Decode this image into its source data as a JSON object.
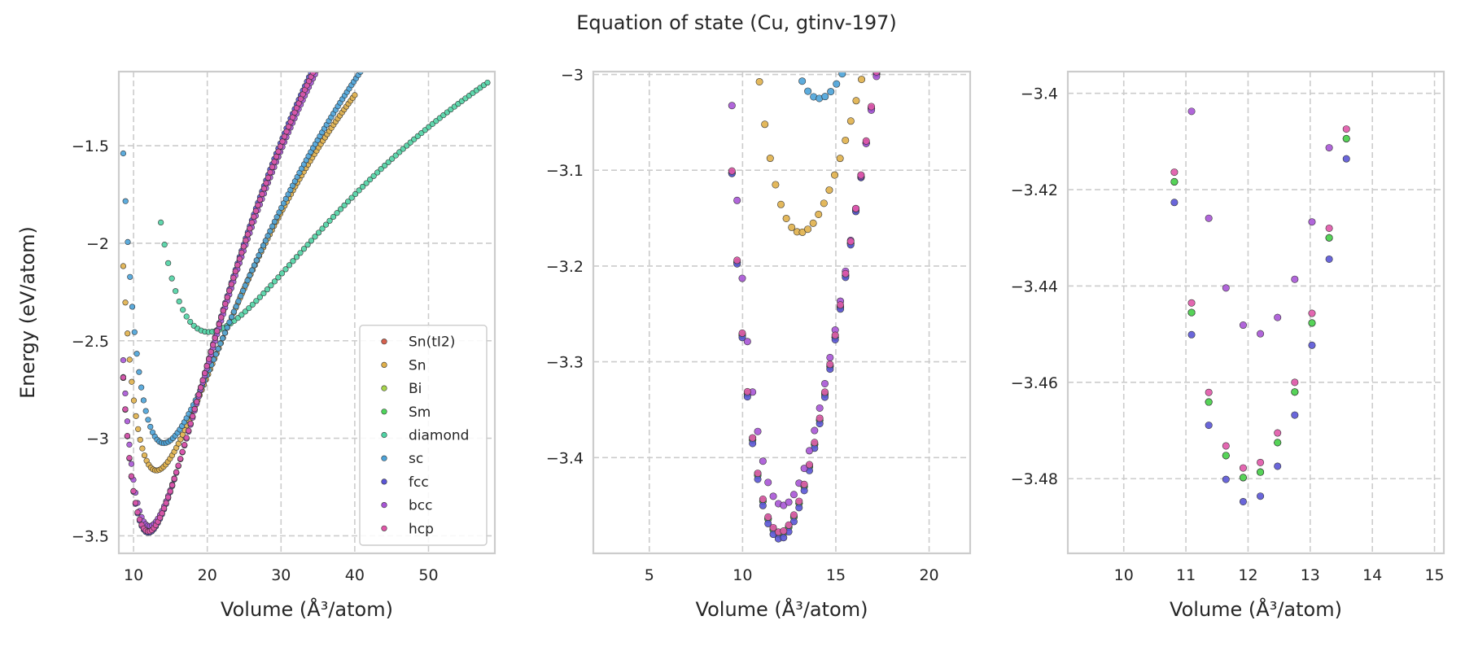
{
  "figure": {
    "title": "Equation of state (Cu, gtinv-197)"
  },
  "chart_data": [
    {
      "type": "scatter",
      "xlabel": "Volume (Å³/atom)",
      "ylabel": "Energy (eV/atom)",
      "xlim": [
        8.0,
        59.0
      ],
      "ylim": [
        -3.59,
        -1.12
      ],
      "xticks": [
        10,
        20,
        30,
        40,
        50
      ],
      "yticks": [
        -3.5,
        -3.0,
        -2.5,
        -2.0,
        -1.5
      ],
      "grid": true,
      "legend": {
        "position": "lower-right"
      },
      "series": [
        {
          "name": "Sn(tI2)",
          "color": "#d6604d",
          "model": {
            "e0": -3.48,
            "v0": 12.0,
            "b": 0.86,
            "bp": 4.8
          },
          "vrange": [
            8.6,
            36.0
          ],
          "n": 100
        },
        {
          "name": "Sn",
          "color": "#e0b04a",
          "model": {
            "e0": -3.165,
            "v0": 13.1,
            "b": 0.6,
            "bp": 4.8
          },
          "vrange": [
            8.6,
            40.0
          ],
          "n": 110
        },
        {
          "name": "Bi",
          "color": "#a6d44a",
          "model": {
            "e0": -3.48,
            "v0": 12.0,
            "b": 0.86,
            "bp": 4.8
          },
          "vrange": [
            8.6,
            36.0
          ],
          "n": 100
        },
        {
          "name": "Sm",
          "color": "#4cd45a",
          "model": {
            "e0": -3.48,
            "v0": 12.0,
            "b": 0.86,
            "bp": 4.8
          },
          "vrange": [
            8.6,
            36.0
          ],
          "n": 100
        },
        {
          "name": "diamond",
          "color": "#4fd3a4",
          "model": {
            "e0": -2.455,
            "v0": 20.2,
            "b": 0.26,
            "bp": 4.6
          },
          "vrange": [
            13.7,
            58.0
          ],
          "n": 90
        },
        {
          "name": "sc",
          "color": "#4ba3d9",
          "model": {
            "e0": -3.025,
            "v0": 14.1,
            "b": 0.55,
            "bp": 4.6
          },
          "vrange": [
            8.6,
            42.0
          ],
          "n": 110
        },
        {
          "name": "fcc",
          "color": "#5a55d6",
          "model": {
            "e0": -3.485,
            "v0": 12.0,
            "b": 0.87,
            "bp": 4.8
          },
          "vrange": [
            8.6,
            36.0
          ],
          "n": 100
        },
        {
          "name": "bcc",
          "color": "#a855d6",
          "model": {
            "e0": -3.45,
            "v0": 12.15,
            "b": 0.84,
            "bp": 4.8
          },
          "vrange": [
            8.6,
            36.0
          ],
          "n": 100
        },
        {
          "name": "hcp",
          "color": "#e056a8",
          "model": {
            "e0": -3.478,
            "v0": 12.0,
            "b": 0.86,
            "bp": 4.8
          },
          "vrange": [
            8.6,
            36.0
          ],
          "n": 100
        }
      ]
    },
    {
      "type": "scatter",
      "xlabel": "Volume (Å³/atom)",
      "ylabel": "",
      "xlim": [
        2.0,
        22.2
      ],
      "ylim": [
        -3.5,
        -2.997
      ],
      "xticks": [
        5,
        10,
        15,
        20
      ],
      "yticks": [
        -3.4,
        -3.3,
        -3.2,
        -3.1,
        -3.0
      ],
      "grid": true,
      "zoom_of": 0
    },
    {
      "type": "scatter",
      "xlabel": "Volume (Å³/atom)",
      "ylabel": "",
      "xlim": [
        9.1,
        15.15
      ],
      "ylim": [
        -3.4955,
        -3.3955
      ],
      "xticks": [
        10,
        11,
        12,
        13,
        14,
        15
      ],
      "yticks": [
        -3.48,
        -3.46,
        -3.44,
        -3.42,
        -3.4
      ],
      "grid": true,
      "zoom_of": 0
    }
  ]
}
